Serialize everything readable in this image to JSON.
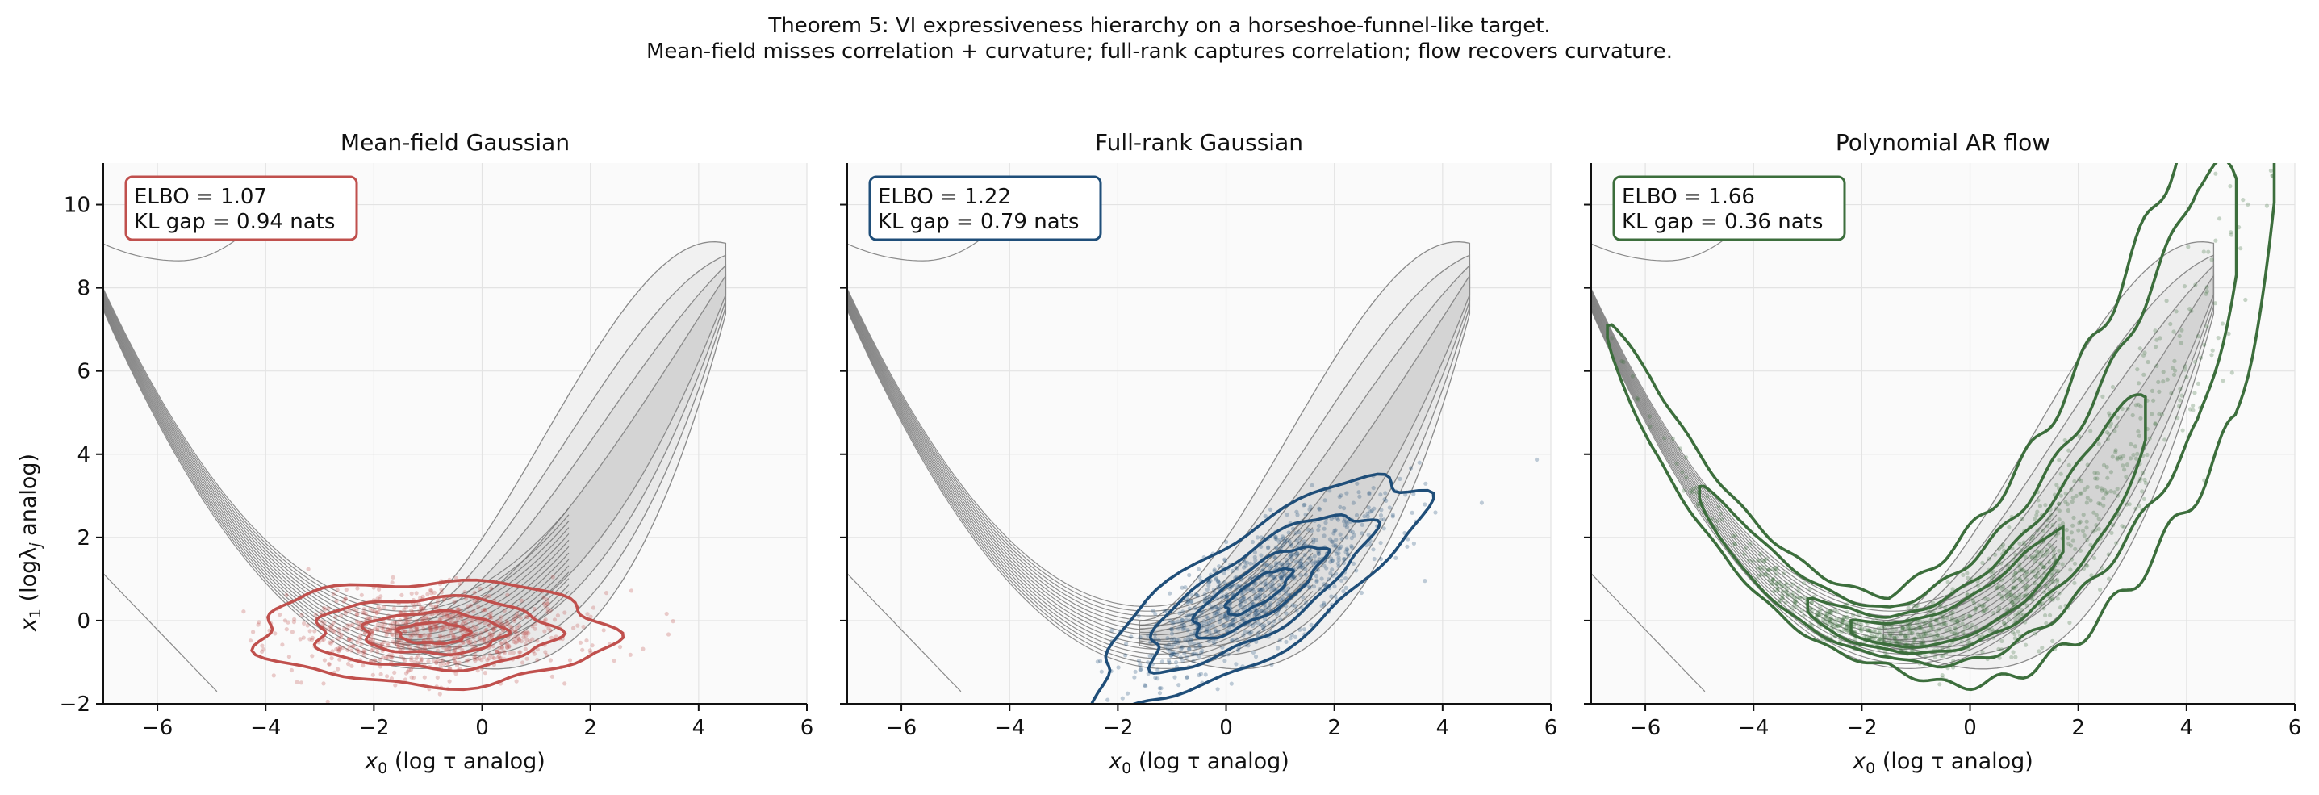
{
  "suptitle": {
    "line1": "Theorem 5: VI expressiveness hierarchy on a horseshoe-funnel-like target.",
    "line2": "Mean-field misses correlation + curvature; full-rank captures correlation; flow recovers curvature."
  },
  "axes": {
    "xlabel_var": "x",
    "xlabel_sub": "0",
    "xlabel_rest": "  (log τ analog)",
    "ylabel_var": "x",
    "ylabel_sub": "1",
    "ylabel_rest": "  (logλ",
    "ylabel_sub2": "j",
    "ylabel_end": " analog)"
  },
  "chart_data": [
    {
      "type": "scatter",
      "title": "Mean-field Gaussian",
      "xlim": [
        -7,
        6
      ],
      "ylim": [
        -2,
        11
      ],
      "xticks": [
        -6,
        -4,
        -2,
        0,
        2,
        4,
        6
      ],
      "yticks": [
        -2,
        0,
        2,
        4,
        6,
        8,
        10
      ],
      "grid": true,
      "color": "#c0504d",
      "annotation": {
        "elbo": "ELBO = 1.07",
        "kl": "KL gap = 0.94 nats",
        "placement": "top-left"
      },
      "approx": {
        "kind": "mean-field",
        "mu": [
          -0.9,
          -0.3
        ],
        "sd": [
          1.3,
          0.5
        ],
        "rho": 0.0
      },
      "target": {
        "kind": "curved funnel",
        "ridge": "x1 = 0.25*(x0+1.3)^2 - 0.4"
      }
    },
    {
      "type": "scatter",
      "title": "Full-rank Gaussian",
      "xlim": [
        -7,
        6
      ],
      "ylim": [
        -2,
        11
      ],
      "xticks": [
        -6,
        -4,
        -2,
        0,
        2,
        4,
        6
      ],
      "yticks": [
        -2,
        0,
        2,
        4,
        6,
        8,
        10
      ],
      "grid": true,
      "color": "#1f4e79",
      "annotation": {
        "elbo": "ELBO = 1.22",
        "kl": "KL gap = 0.79 nats",
        "placement": "top-left"
      },
      "approx": {
        "kind": "full-rank",
        "mu": [
          0.6,
          0.7
        ],
        "sd": [
          1.2,
          1.1
        ],
        "rho": 0.8
      },
      "target": {
        "kind": "curved funnel",
        "ridge": "x1 = 0.25*(x0+1.3)^2 - 0.4"
      }
    },
    {
      "type": "scatter",
      "title": "Polynomial AR flow",
      "xlim": [
        -7,
        6
      ],
      "ylim": [
        -2,
        11
      ],
      "xticks": [
        -6,
        -4,
        -2,
        0,
        2,
        4,
        6
      ],
      "yticks": [
        -2,
        0,
        2,
        4,
        6,
        8,
        10
      ],
      "grid": true,
      "color": "#3c6e3c",
      "annotation": {
        "elbo": "ELBO = 1.66",
        "kl": "KL gap = 0.36 nats",
        "placement": "top-left"
      },
      "approx": {
        "kind": "flow (curved)",
        "mu": [
          -1.2,
          0
        ],
        "sd": [
          1.6,
          0.35
        ],
        "rho": 0.0
      },
      "target": {
        "kind": "curved funnel",
        "ridge": "x1 = 0.25*(x0+1.3)^2 - 0.4"
      }
    }
  ]
}
